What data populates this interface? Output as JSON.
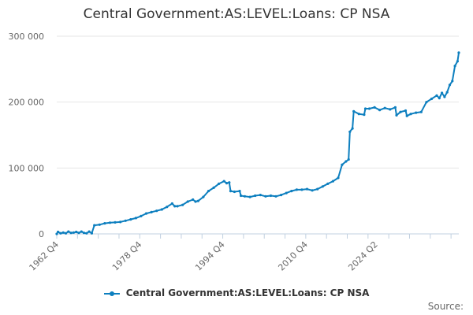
{
  "chart_data": {
    "type": "line",
    "title": "Central Government:AS:LEVEL:Loans: CP NSA",
    "series": [
      {
        "name": "Central Government:AS:LEVEL:Loans: CP NSA",
        "color": "#0d7fbf",
        "points": [
          [
            1962.75,
            0
          ],
          [
            1963.0,
            3000
          ],
          [
            1963.5,
            1000
          ],
          [
            1964.0,
            2000
          ],
          [
            1964.5,
            1000
          ],
          [
            1965.0,
            3500
          ],
          [
            1965.5,
            1500
          ],
          [
            1966.0,
            2000
          ],
          [
            1966.5,
            3000
          ],
          [
            1967.0,
            1500
          ],
          [
            1967.5,
            3500
          ],
          [
            1968.0,
            1500
          ],
          [
            1968.5,
            1000
          ],
          [
            1969.0,
            3500
          ],
          [
            1969.5,
            1000
          ],
          [
            1970.0,
            13000
          ],
          [
            1971.0,
            14000
          ],
          [
            1972.0,
            16000
          ],
          [
            1973.0,
            17000
          ],
          [
            1974.0,
            17500
          ],
          [
            1975.0,
            18000
          ],
          [
            1976.0,
            20000
          ],
          [
            1977.0,
            22000
          ],
          [
            1978.0,
            24000
          ],
          [
            1979.0,
            27000
          ],
          [
            1980.0,
            31000
          ],
          [
            1981.0,
            33000
          ],
          [
            1982.0,
            35000
          ],
          [
            1983.0,
            37000
          ],
          [
            1984.0,
            41000
          ],
          [
            1985.0,
            46000
          ],
          [
            1985.5,
            42000
          ],
          [
            1986.0,
            42000
          ],
          [
            1987.0,
            44000
          ],
          [
            1988.0,
            49000
          ],
          [
            1989.0,
            52000
          ],
          [
            1989.5,
            49000
          ],
          [
            1990.0,
            50000
          ],
          [
            1991.0,
            56000
          ],
          [
            1992.0,
            65000
          ],
          [
            1993.0,
            70000
          ],
          [
            1994.0,
            76000
          ],
          [
            1995.0,
            80000
          ],
          [
            1995.5,
            77000
          ],
          [
            1996.0,
            78000
          ],
          [
            1996.25,
            65000
          ],
          [
            1997.0,
            64000
          ],
          [
            1998.0,
            65000
          ],
          [
            1998.25,
            58000
          ],
          [
            1999.0,
            57000
          ],
          [
            2000.0,
            56000
          ],
          [
            2001.0,
            58000
          ],
          [
            2002.0,
            59000
          ],
          [
            2003.0,
            57000
          ],
          [
            2004.0,
            58000
          ],
          [
            2005.0,
            57000
          ],
          [
            2006.0,
            59000
          ],
          [
            2007.0,
            62000
          ],
          [
            2008.0,
            65000
          ],
          [
            2009.0,
            67000
          ],
          [
            2010.0,
            67000
          ],
          [
            2011.0,
            68000
          ],
          [
            2012.0,
            66000
          ],
          [
            2013.0,
            68000
          ],
          [
            2014.0,
            72000
          ],
          [
            2015.0,
            76000
          ],
          [
            2016.0,
            80000
          ],
          [
            2017.0,
            85000
          ],
          [
            2017.75,
            105000
          ],
          [
            2018.5,
            110000
          ],
          [
            2019.0,
            113000
          ],
          [
            2019.25,
            155000
          ],
          [
            2019.75,
            160000
          ],
          [
            2020.0,
            186000
          ],
          [
            2021.0,
            182000
          ],
          [
            2022.0,
            181000
          ],
          [
            2022.25,
            190000
          ],
          [
            2023.0,
            190000
          ],
          [
            2024.0,
            192000
          ],
          [
            2025.0,
            188000
          ],
          [
            2026.0,
            191000
          ],
          [
            2027.0,
            189000
          ],
          [
            2028.0,
            192000
          ],
          [
            2028.25,
            180000
          ],
          [
            2029.0,
            185000
          ],
          [
            2030.0,
            187000
          ],
          [
            2030.25,
            179000
          ],
          [
            2031.0,
            182000
          ],
          [
            2032.0,
            184000
          ],
          [
            2033.0,
            185000
          ],
          [
            2034.0,
            200000
          ],
          [
            2035.0,
            205000
          ],
          [
            2036.0,
            210000
          ],
          [
            2036.5,
            206000
          ],
          [
            2037.0,
            214000
          ],
          [
            2037.5,
            208000
          ],
          [
            2038.0,
            215000
          ],
          [
            2038.5,
            226000
          ],
          [
            2039.0,
            232000
          ],
          [
            2039.5,
            255000
          ],
          [
            2040.0,
            262000
          ],
          [
            2040.25,
            275000
          ]
        ]
      }
    ],
    "x_ticks": [
      {
        "value": 1962.75,
        "label": "1962 Q4"
      },
      {
        "value": 1978.75,
        "label": "1978 Q4"
      },
      {
        "value": 1994.75,
        "label": "1994 Q4"
      },
      {
        "value": 2010.75,
        "label": "2010 Q4"
      },
      {
        "value": 2024.25,
        "label": "2024 Q2"
      }
    ],
    "x_minor_ticks": [
      1962.75,
      1966.75,
      1970.75,
      1974.75,
      1978.75,
      1982.75,
      1986.75,
      1990.75,
      1994.75,
      1998.75,
      2002.75,
      2006.75,
      2010.75,
      2014.75,
      2018.75,
      2022.75,
      2026.75,
      2030.75,
      2034.75,
      2038.75
    ],
    "x_range": [
      1962.75,
      2040.25
    ],
    "y_ticks": [
      {
        "value": 0,
        "label": "0"
      },
      {
        "value": 100000,
        "label": "100 000"
      },
      {
        "value": 200000,
        "label": "200 000"
      },
      {
        "value": 300000,
        "label": "300 000"
      }
    ],
    "ylim": [
      0,
      300000
    ],
    "grid": "horizontal",
    "legend": "bottom-center"
  },
  "source_label": "Source:"
}
